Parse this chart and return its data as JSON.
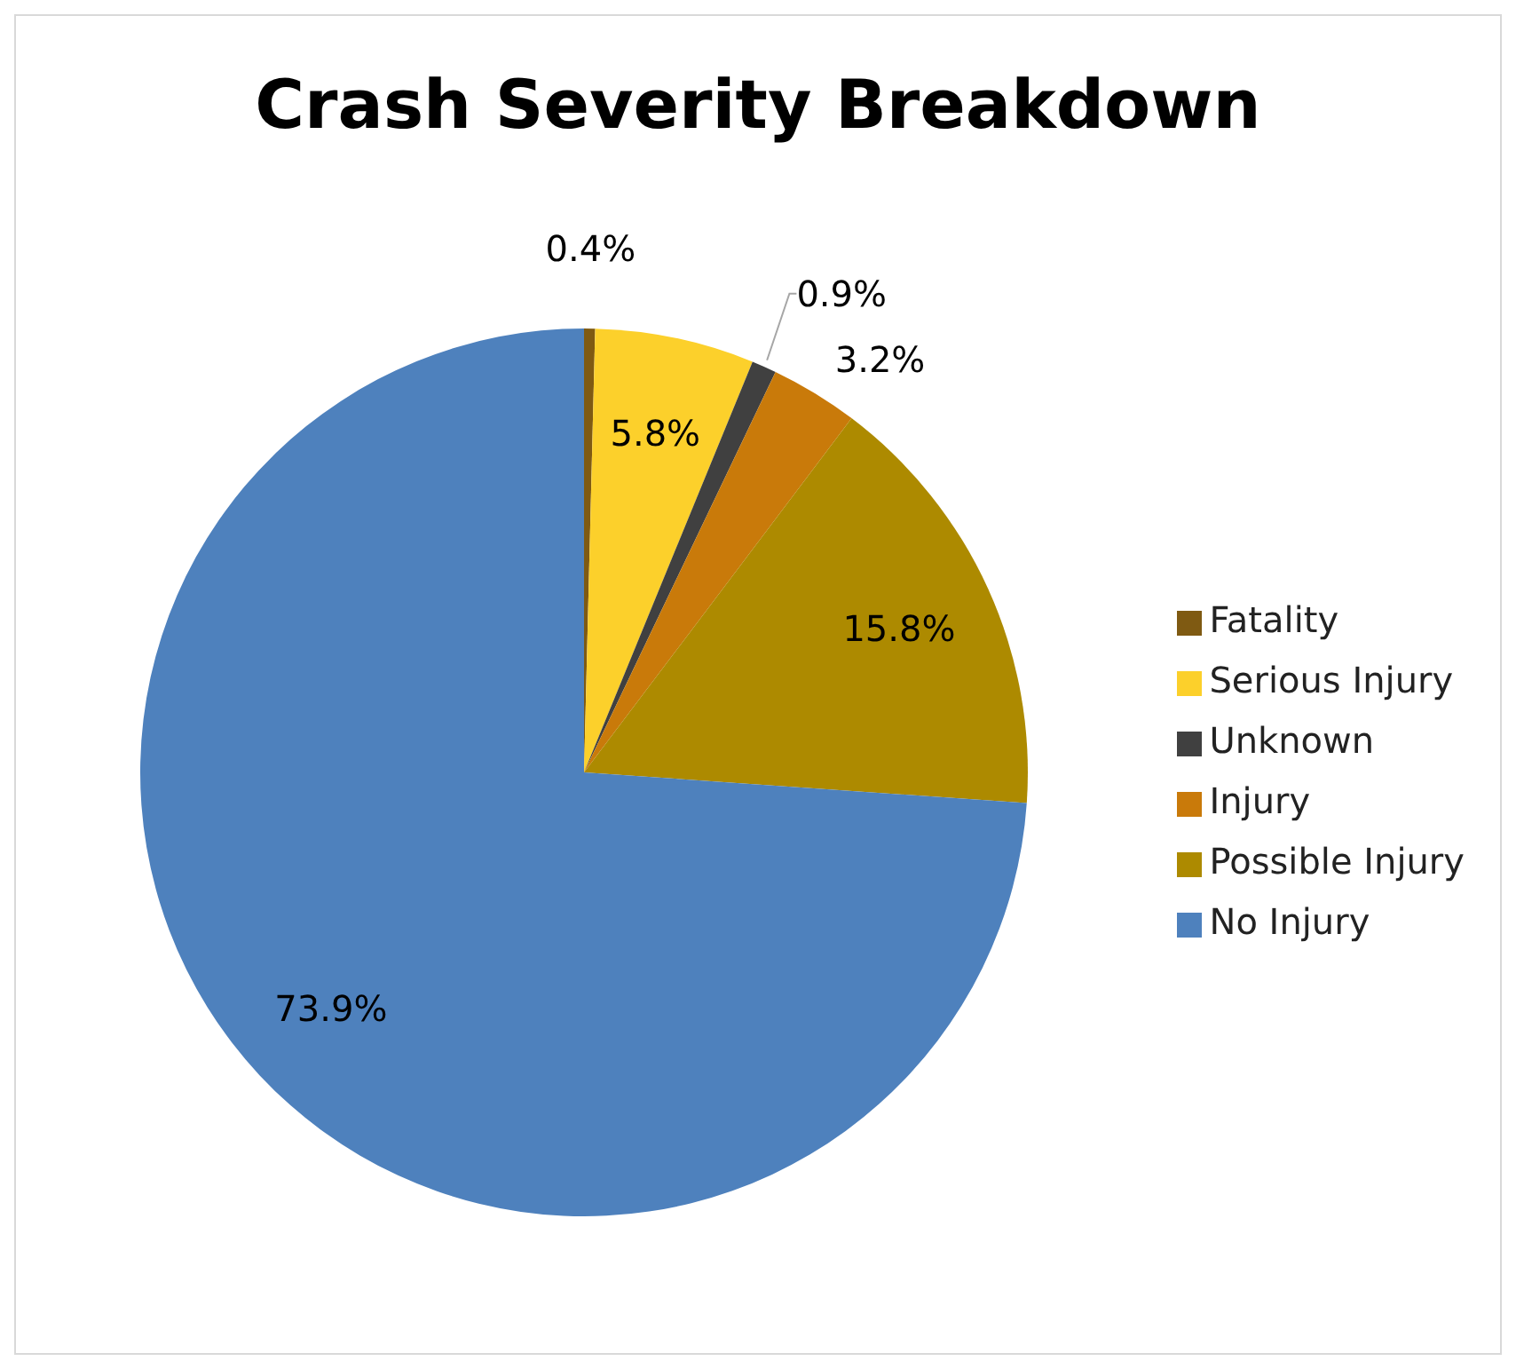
{
  "chart_data": {
    "type": "pie",
    "title": "Crash Severity Breakdown",
    "categories": [
      "Fatality",
      "Serious Injury",
      "Unknown",
      "Injury",
      "Possible Injury",
      "No Injury"
    ],
    "values": [
      0.4,
      5.8,
      0.9,
      3.2,
      15.8,
      73.9
    ],
    "colors": [
      "#7f5a12",
      "#fcd02b",
      "#404040",
      "#c97a0a",
      "#ad8a00",
      "#4e81bd"
    ],
    "value_labels": [
      "0.4%",
      "5.8%",
      "0.9%",
      "3.2%",
      "15.8%",
      "73.9%"
    ],
    "legend": "right"
  }
}
